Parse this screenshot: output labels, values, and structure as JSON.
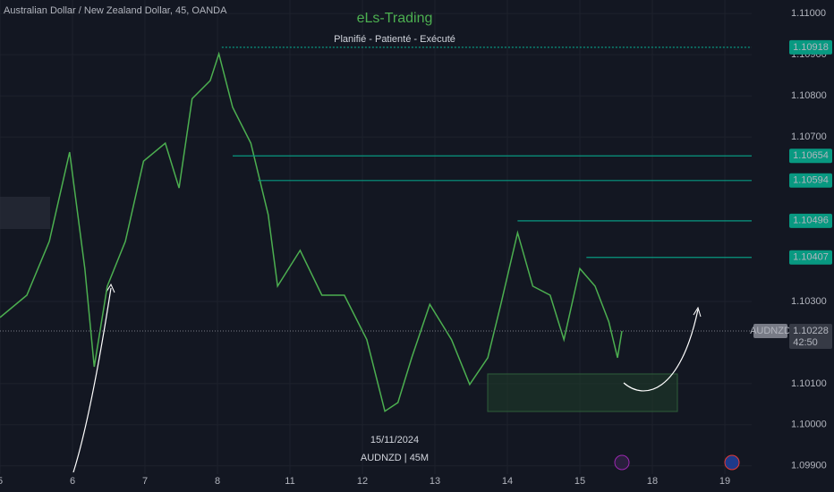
{
  "chart_data": {
    "type": "line",
    "header": "Australian Dollar / New Zealand Dollar, 45, OANDA",
    "title": "eLs-Trading",
    "subtitle": "Planifié - Patienté - Exécuté",
    "date_marker": "15/11/2024",
    "footer": "AUDNZD | 45M",
    "symbol": "AUDNZD",
    "current_price": 1.10228,
    "countdown": "42:50",
    "ylim": [
      1.11033,
      1.0988
    ],
    "yticks": [
      {
        "value": 1.11,
        "label": "1.11000"
      },
      {
        "value": 1.109,
        "label": "1.10900"
      },
      {
        "value": 1.108,
        "label": "1.10800"
      },
      {
        "value": 1.107,
        "label": "1.10700"
      },
      {
        "value": 1.103,
        "label": "1.10300"
      },
      {
        "value": 1.101,
        "label": "1.10100"
      },
      {
        "value": 1.1,
        "label": "1.10000"
      },
      {
        "value": 1.099,
        "label": "1.09900"
      }
    ],
    "xlim": [
      0,
      10.37
    ],
    "xticks": [
      {
        "value": 0,
        "label": "5"
      },
      {
        "value": 1,
        "label": "6"
      },
      {
        "value": 2,
        "label": "7"
      },
      {
        "value": 3,
        "label": "8"
      },
      {
        "value": 4,
        "label": "11"
      },
      {
        "value": 5,
        "label": "12"
      },
      {
        "value": 6,
        "label": "13"
      },
      {
        "value": 7,
        "label": "14"
      },
      {
        "value": 8,
        "label": "15"
      },
      {
        "value": 9,
        "label": "18"
      },
      {
        "value": 10,
        "label": "19"
      }
    ],
    "levels": [
      {
        "value": 1.10918,
        "from": 3.06
      },
      {
        "value": 1.10654,
        "from": 3.21
      },
      {
        "value": 1.10594,
        "from": 3.56
      },
      {
        "value": 1.10496,
        "from": 7.14
      },
      {
        "value": 1.10407,
        "from": 8.09
      }
    ],
    "level_color": "#089981",
    "series": [
      {
        "name": "AUDNZD",
        "color": "#4caf50",
        "x": [
          0,
          0.37,
          0.68,
          0.96,
          1.17,
          1.3,
          1.48,
          1.73,
          1.98,
          2.28,
          2.47,
          2.65,
          2.9,
          3.02,
          3.21,
          3.46,
          3.7,
          3.83,
          4.14,
          4.44,
          4.75,
          5.06,
          5.31,
          5.49,
          5.68,
          5.93,
          6.23,
          6.48,
          6.73,
          6.91,
          7.14,
          7.35,
          7.59,
          7.78,
          8,
          8.21,
          8.4,
          8.52,
          8.58
        ],
        "values": [
          1.10261,
          1.10315,
          1.10446,
          1.10663,
          1.1038,
          1.10141,
          1.10337,
          1.10446,
          1.10641,
          1.10685,
          1.10576,
          1.10793,
          1.10837,
          1.10902,
          1.10772,
          1.10685,
          1.10511,
          1.10337,
          1.10424,
          1.10315,
          1.10315,
          1.10207,
          1.10033,
          1.10054,
          1.10163,
          1.10293,
          1.10207,
          1.10098,
          1.10163,
          1.10293,
          1.10467,
          1.10337,
          1.10315,
          1.10207,
          1.1038,
          1.10337,
          1.1025,
          1.10163,
          1.10228
        ]
      }
    ]
  }
}
